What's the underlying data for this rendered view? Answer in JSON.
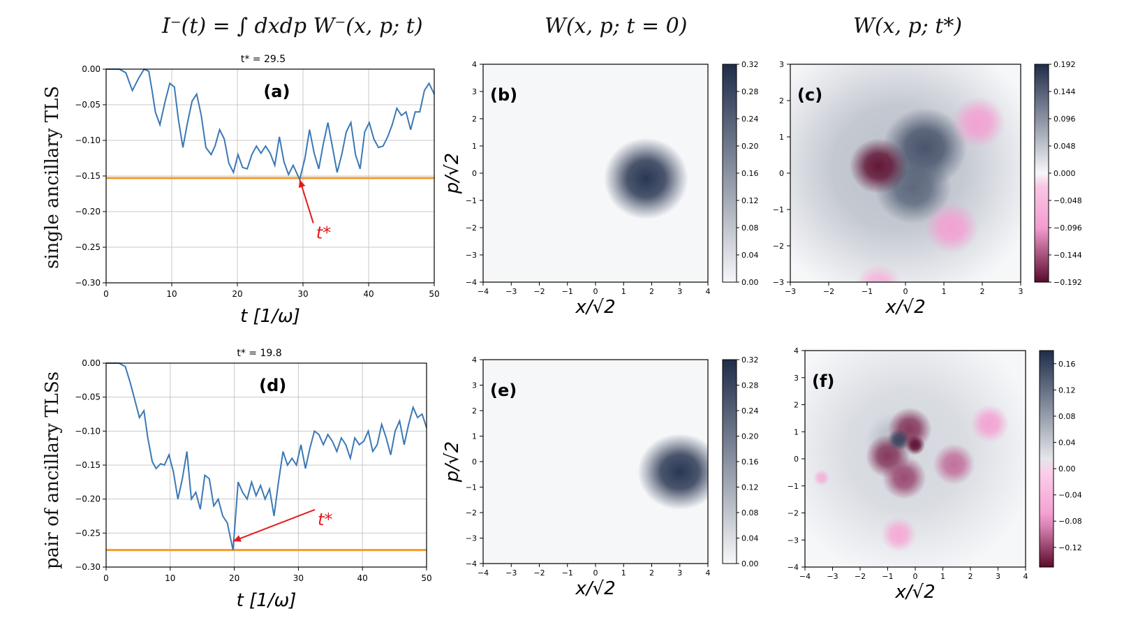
{
  "column_titles": {
    "left": "I⁻(t) = ∫ dxdp W⁻(x, p; t)",
    "middle": "W(x, p; t = 0)",
    "right": "W(x, p; t*)"
  },
  "row_labels": {
    "top": "single ancillary TLS",
    "bottom": "pair of ancillary TLSs"
  },
  "colors": {
    "line": "#3a78b5",
    "threshold": "#f59a2e",
    "annotation": "#e31a1c",
    "pos_dark": "#1f2d4a",
    "neg_pink": "#f39cd0",
    "neg_dark": "#5a0a2b"
  },
  "chart_data": [
    {
      "id": "a",
      "type": "line",
      "panel_label": "(a)",
      "title": "t* = 29.5",
      "xlabel": "t [1/ω]",
      "ylabel": "",
      "xlim": [
        0,
        50
      ],
      "ylim": [
        -0.3,
        0.0
      ],
      "xticks": [
        "0",
        "10",
        "20",
        "30",
        "40",
        "50"
      ],
      "yticks": [
        "0.00",
        "−0.05",
        "−0.10",
        "−0.15",
        "−0.20",
        "−0.25",
        "−0.30"
      ],
      "grid": true,
      "series": [
        {
          "name": "I⁻(t)",
          "x": [
            0,
            1,
            2,
            3,
            4,
            5,
            5.8,
            6.5,
            7,
            7.5,
            8.2,
            9,
            9.7,
            10.4,
            11,
            11.7,
            12.4,
            13.1,
            13.8,
            14.5,
            15.2,
            16,
            16.6,
            17.3,
            18,
            18.7,
            19.4,
            20.1,
            20.8,
            21.5,
            22.2,
            22.9,
            23.6,
            24.3,
            25,
            25.7,
            26.4,
            27.1,
            27.8,
            28.5,
            29.5,
            30.3,
            31,
            31.7,
            32.4,
            33.1,
            33.8,
            34.5,
            35.2,
            35.9,
            36.6,
            37.3,
            38,
            38.7,
            39.4,
            40.1,
            40.8,
            41.5,
            42.2,
            42.9,
            43.6,
            44.3,
            45,
            45.7,
            46.4,
            47.1,
            47.8,
            48.5,
            49.2,
            50
          ],
          "y": [
            0,
            0,
            0,
            -0.005,
            -0.03,
            -0.012,
            0,
            -0.003,
            -0.03,
            -0.06,
            -0.078,
            -0.045,
            -0.02,
            -0.025,
            -0.07,
            -0.11,
            -0.075,
            -0.045,
            -0.035,
            -0.065,
            -0.11,
            -0.12,
            -0.108,
            -0.085,
            -0.098,
            -0.132,
            -0.145,
            -0.12,
            -0.138,
            -0.14,
            -0.12,
            -0.108,
            -0.118,
            -0.108,
            -0.118,
            -0.135,
            -0.095,
            -0.13,
            -0.148,
            -0.135,
            -0.155,
            -0.125,
            -0.085,
            -0.118,
            -0.14,
            -0.105,
            -0.075,
            -0.11,
            -0.145,
            -0.12,
            -0.088,
            -0.075,
            -0.12,
            -0.14,
            -0.088,
            -0.075,
            -0.098,
            -0.11,
            -0.108,
            -0.095,
            -0.078,
            -0.055,
            -0.065,
            -0.06,
            -0.085,
            -0.06,
            -0.06,
            -0.03,
            -0.02,
            -0.035
          ]
        }
      ],
      "threshold": -0.153,
      "annotation": {
        "label": "t*",
        "point": [
          29.5,
          -0.155
        ],
        "text_at": [
          32,
          -0.23
        ]
      }
    },
    {
      "id": "d",
      "type": "line",
      "panel_label": "(d)",
      "title": "t* = 19.8",
      "xlabel": "t [1/ω]",
      "ylabel": "",
      "xlim": [
        0,
        50
      ],
      "ylim": [
        -0.3,
        0.0
      ],
      "xticks": [
        "0",
        "10",
        "20",
        "30",
        "40",
        "50"
      ],
      "yticks": [
        "0.00",
        "−0.05",
        "−0.10",
        "−0.15",
        "−0.20",
        "−0.25",
        "−0.30"
      ],
      "grid": true,
      "series": [
        {
          "name": "I⁻(t)",
          "x": [
            0,
            1,
            2,
            3,
            3.8,
            4.5,
            5.2,
            5.9,
            6.5,
            7.2,
            7.8,
            8.5,
            9.1,
            9.8,
            10.5,
            11.2,
            11.9,
            12.6,
            13.3,
            14,
            14.7,
            15.4,
            16.1,
            16.8,
            17.5,
            18.2,
            18.9,
            19.8,
            20.6,
            21.3,
            22,
            22.7,
            23.4,
            24.1,
            24.8,
            25.5,
            26.2,
            26.9,
            27.6,
            28.3,
            29,
            29.7,
            30.4,
            31.1,
            31.8,
            32.5,
            33.2,
            33.9,
            34.6,
            35.3,
            36,
            36.7,
            37.4,
            38.1,
            38.8,
            39.5,
            40.2,
            40.9,
            41.6,
            42.3,
            43,
            43.7,
            44.4,
            45.1,
            45.8,
            46.5,
            47.2,
            47.9,
            48.6,
            49.3,
            50
          ],
          "y": [
            0,
            0,
            0,
            -0.005,
            -0.03,
            -0.055,
            -0.08,
            -0.07,
            -0.11,
            -0.145,
            -0.155,
            -0.148,
            -0.15,
            -0.135,
            -0.16,
            -0.2,
            -0.17,
            -0.13,
            -0.2,
            -0.19,
            -0.215,
            -0.165,
            -0.17,
            -0.21,
            -0.2,
            -0.225,
            -0.235,
            -0.275,
            -0.175,
            -0.19,
            -0.2,
            -0.175,
            -0.195,
            -0.18,
            -0.2,
            -0.185,
            -0.225,
            -0.175,
            -0.13,
            -0.15,
            -0.14,
            -0.15,
            -0.12,
            -0.155,
            -0.125,
            -0.1,
            -0.105,
            -0.12,
            -0.105,
            -0.115,
            -0.13,
            -0.11,
            -0.12,
            -0.14,
            -0.11,
            -0.12,
            -0.115,
            -0.1,
            -0.13,
            -0.12,
            -0.09,
            -0.11,
            -0.135,
            -0.1,
            -0.085,
            -0.12,
            -0.09,
            -0.065,
            -0.08,
            -0.075,
            -0.095
          ]
        }
      ],
      "threshold": -0.275,
      "annotation": {
        "label": "t*",
        "point": [
          19.8,
          -0.262
        ],
        "text_at": [
          33,
          -0.23
        ]
      }
    },
    {
      "id": "b",
      "type": "heatmap",
      "panel_label": "(b)",
      "title": "",
      "xlabel": "x/√2",
      "ylabel": "p/√2",
      "xlim": [
        -4,
        4
      ],
      "ylim": [
        -4,
        4
      ],
      "xticks": [
        "−4",
        "−3",
        "−2",
        "−1",
        "0",
        "1",
        "2",
        "3",
        "4"
      ],
      "yticks": [
        "4",
        "3",
        "2",
        "1",
        "0",
        "−1",
        "−2",
        "−3",
        "−4"
      ],
      "colorbar": {
        "min": 0.0,
        "max": 0.32,
        "ticks": [
          "0.32",
          "0.28",
          "0.24",
          "0.20",
          "0.16",
          "0.12",
          "0.08",
          "0.04",
          "0.00"
        ]
      },
      "blobs": [
        {
          "x": 1.8,
          "y": -0.2,
          "sigma": 0.75,
          "value": 0.32
        }
      ]
    },
    {
      "id": "c",
      "type": "heatmap",
      "panel_label": "(c)",
      "title": "",
      "xlabel": "x/√2",
      "ylabel": "",
      "xlim": [
        -3,
        3
      ],
      "ylim": [
        -3,
        3
      ],
      "xticks": [
        "−3",
        "−2",
        "−1",
        "0",
        "1",
        "2",
        "3"
      ],
      "yticks": [
        "3",
        "2",
        "1",
        "0",
        "−1",
        "−2",
        "−3"
      ],
      "colorbar": {
        "min": -0.192,
        "max": 0.192,
        "ticks": [
          "0.192",
          "0.144",
          "0.096",
          "0.048",
          "0.000",
          "−0.048",
          "−0.096",
          "−0.144",
          "−0.192"
        ]
      },
      "blobs": [
        {
          "x": 0.5,
          "y": 0.7,
          "sigma": 0.55,
          "value": 0.16
        },
        {
          "x": 0.2,
          "y": -0.4,
          "sigma": 0.5,
          "value": 0.14
        },
        {
          "x": -0.2,
          "y": 0.15,
          "sigma": 1.9,
          "value": 0.055
        },
        {
          "x": -0.7,
          "y": 0.2,
          "sigma": 0.38,
          "value": -0.19
        },
        {
          "x": 1.9,
          "y": 1.4,
          "sigma": 0.35,
          "value": -0.09
        },
        {
          "x": 1.2,
          "y": -1.5,
          "sigma": 0.35,
          "value": -0.09
        },
        {
          "x": -0.7,
          "y": -3.1,
          "sigma": 0.3,
          "value": -0.06
        }
      ]
    },
    {
      "id": "e",
      "type": "heatmap",
      "panel_label": "(e)",
      "title": "",
      "xlabel": "x/√2",
      "ylabel": "p/√2",
      "xlim": [
        -4,
        4
      ],
      "ylim": [
        -4,
        4
      ],
      "xticks": [
        "−4",
        "−3",
        "−2",
        "−1",
        "0",
        "1",
        "2",
        "3",
        "4"
      ],
      "yticks": [
        "4",
        "3",
        "2",
        "1",
        "0",
        "−1",
        "−2",
        "−3",
        "−4"
      ],
      "colorbar": {
        "min": 0.0,
        "max": 0.32,
        "ticks": [
          "0.32",
          "0.28",
          "0.24",
          "0.20",
          "0.16",
          "0.12",
          "0.08",
          "0.04",
          "0.00"
        ]
      },
      "blobs": [
        {
          "x": 3.0,
          "y": -0.4,
          "sigma": 0.75,
          "value": 0.32
        }
      ]
    },
    {
      "id": "f",
      "type": "heatmap",
      "panel_label": "(f)",
      "title": "",
      "xlabel": "x/√2",
      "ylabel": "",
      "xlim": [
        -4,
        4
      ],
      "ylim": [
        -4,
        4
      ],
      "xticks": [
        "−4",
        "−3",
        "−2",
        "−1",
        "0",
        "1",
        "2",
        "3",
        "4"
      ],
      "yticks": [
        "4",
        "3",
        "2",
        "1",
        "0",
        "−1",
        "−2",
        "−3",
        "−4"
      ],
      "colorbar": {
        "min": -0.15,
        "max": 0.18,
        "ticks": [
          "0.16",
          "0.12",
          "0.08",
          "0.04",
          "0.00",
          "−0.04",
          "−0.08",
          "−0.12"
        ]
      },
      "blobs": [
        {
          "x": -0.3,
          "y": 0.3,
          "sigma": 2.4,
          "value": 0.03
        },
        {
          "x": -0.8,
          "y": 0.7,
          "sigma": 0.5,
          "value": 0.05
        },
        {
          "x": -1.0,
          "y": 0.1,
          "sigma": 0.4,
          "value": -0.13
        },
        {
          "x": -0.2,
          "y": 1.1,
          "sigma": 0.4,
          "value": -0.13
        },
        {
          "x": -0.4,
          "y": -0.7,
          "sigma": 0.4,
          "value": -0.12
        },
        {
          "x": -0.6,
          "y": 0.7,
          "sigma": 0.2,
          "value": 0.16
        },
        {
          "x": 0.0,
          "y": 0.5,
          "sigma": 0.18,
          "value": -0.15
        },
        {
          "x": 1.4,
          "y": -0.2,
          "sigma": 0.38,
          "value": -0.1
        },
        {
          "x": 2.7,
          "y": 1.3,
          "sigma": 0.35,
          "value": -0.07
        },
        {
          "x": -0.6,
          "y": -2.8,
          "sigma": 0.32,
          "value": -0.06
        },
        {
          "x": -3.4,
          "y": -0.7,
          "sigma": 0.15,
          "value": -0.05
        }
      ]
    }
  ]
}
